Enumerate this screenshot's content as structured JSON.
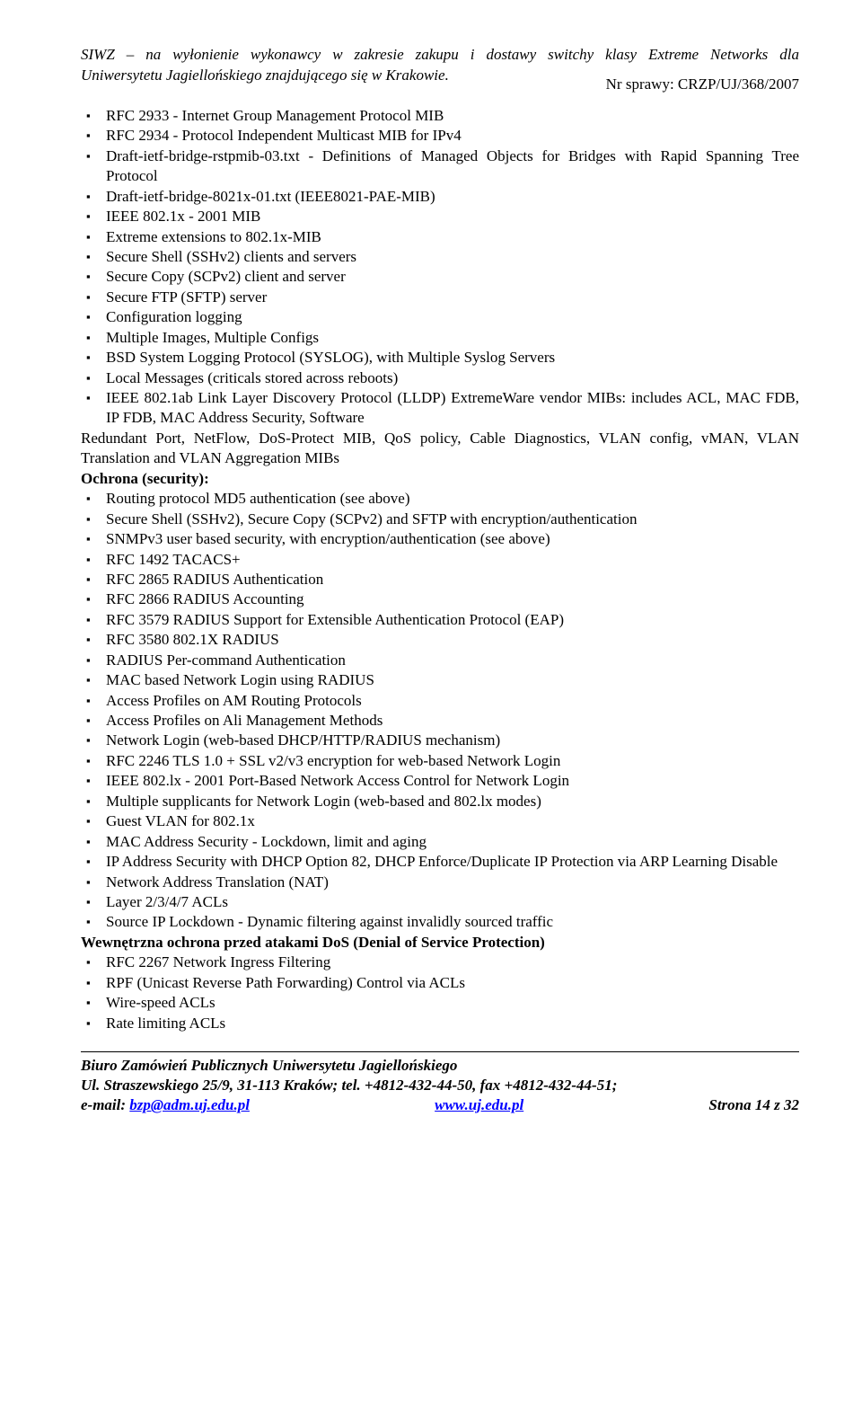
{
  "header": {
    "line1": "SIWZ – na wyłonienie wykonawcy w zakresie zakupu i dostawy switchy klasy Extreme Networks dla",
    "line2": "Uniwersytetu Jagiellońskiego znajdującego się w Krakowie."
  },
  "caseNumber": "Nr sprawy: CRZP/UJ/368/2007",
  "block1": {
    "items": [
      "RFC 2933 - Internet Group Management Protocol MIB",
      "RFC 2934 - Protocol Independent Multicast MIB for IPv4",
      "Draft-ietf-bridge-rstpmib-03.txt - Definitions of Managed Objects for Bridges with Rapid Spanning Tree Protocol",
      "Draft-ietf-bridge-8021x-01.txt (IEEE8021-PAE-MIB)",
      "IEEE 802.1x - 2001 MIB",
      "Extreme extensions to 802.1x-MIB",
      "Secure Shell (SSHv2) clients and servers",
      "Secure Copy (SCPv2) client and server",
      "Secure FTP (SFTP) server",
      "Configuration logging",
      "Multiple Images, Multiple Configs",
      "BSD System Logging Protocol (SYSLOG), with Multiple Syslog Servers",
      "Local Messages (criticals stored across reboots)",
      "IEEE 802.1ab Link Layer Discovery Protocol (LLDP) ExtremeWare vendor MIBs: includes ACL, MAC FDB, IP FDB, MAC Address Security, Software"
    ]
  },
  "para1": "Redundant Port, NetFlow, DoS-Protect MIB, QoS policy, Cable Diagnostics, VLAN config, vMAN, VLAN Translation and VLAN Aggregation MIBs",
  "heading1": "Ochrona (security):",
  "block2": {
    "items": [
      "Routing protocol MD5 authentication (see above)",
      "Secure Shell (SSHv2), Secure Copy (SCPv2) and SFTP with encryption/authentication",
      "SNMPv3 user based security, with encryption/authentication (see above)",
      "RFC 1492 TACACS+",
      "RFC 2865 RADIUS Authentication",
      "RFC 2866 RADIUS Accounting",
      "RFC 3579 RADIUS Support for Extensible Authentication Protocol (EAP)",
      "RFC 3580 802.1X RADIUS",
      "RADIUS Per-command Authentication",
      "MAC based Network Login using RADIUS",
      "Access Profiles on AM Routing Protocols",
      "Access Profiles on Ali Management Methods",
      "Network Login (web-based DHCP/HTTP/RADIUS mechanism)",
      "RFC 2246 TLS 1.0 + SSL v2/v3 encryption for web-based Network Login",
      "IEEE 802.lx - 2001 Port-Based Network Access Control for Network Login",
      "Multiple supplicants for Network Login (web-based and 802.lx modes)",
      "Guest VLAN for 802.1x",
      "MAC Address Security - Lockdown, limit and aging",
      "IP Address Security with DHCP Option 82, DHCP Enforce/Duplicate IP Protection via ARP Learning Disable",
      "Network Address Translation (NAT)",
      "Layer 2/3/4/7 ACLs",
      "Source IP Lockdown - Dynamic filtering against invalidly sourced traffic"
    ]
  },
  "heading2": "Wewnętrzna ochrona przed atakami DoS (Denial of Service Protection)",
  "block3": {
    "items": [
      "RFC 2267 Network Ingress Filtering",
      "RPF (Unicast Reverse Path Forwarding) Control via ACLs",
      "Wire-speed ACLs",
      "Rate limiting ACLs"
    ]
  },
  "footer": {
    "line1": "Biuro Zamówień Publicznych Uniwersytetu Jagiellońskiego",
    "line2": "Ul. Straszewskiego 25/9, 31-113 Kraków; tel. +4812-432-44-50, fax +4812-432-44-51;",
    "emailLabel": "e-mail: ",
    "email": "bzp@adm.uj.edu.pl",
    "www": "www.uj.edu.pl",
    "pageInfo": "Strona 14 z 32"
  }
}
